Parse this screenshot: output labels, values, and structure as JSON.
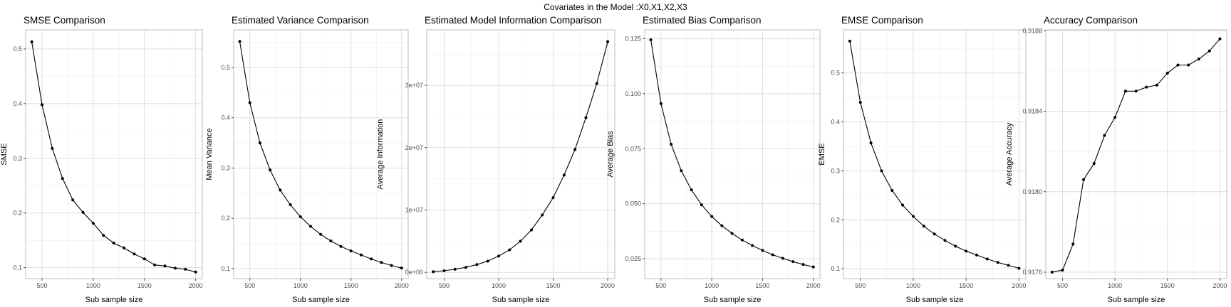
{
  "figure": {
    "suptitle": "Covariates in the Model :X0,X1,X2,X3"
  },
  "chart_data": [
    {
      "type": "line",
      "title": "SMSE Comparison",
      "xlabel": "Sub sample size",
      "ylabel": "SMSE",
      "x": [
        400,
        500,
        600,
        700,
        800,
        900,
        1000,
        1100,
        1200,
        1300,
        1400,
        1500,
        1600,
        1700,
        1800,
        1900,
        2000
      ],
      "values": [
        0.513,
        0.398,
        0.318,
        0.263,
        0.224,
        0.201,
        0.181,
        0.159,
        0.145,
        0.136,
        0.125,
        0.116,
        0.105,
        0.103,
        0.099,
        0.097,
        0.092
      ],
      "xlim": [
        340,
        2065
      ],
      "ylim": [
        0.08,
        0.535
      ],
      "xticks": [
        500,
        1000,
        1500,
        2000
      ],
      "xtick_labels": [
        "500",
        "1000",
        "1500",
        "2000"
      ],
      "yticks": [
        0.1,
        0.2,
        0.3,
        0.4,
        0.5
      ],
      "ytick_labels": [
        "0.1",
        "0.2",
        "0.3",
        "0.4",
        "0.5"
      ],
      "grid": true,
      "markers": true,
      "color": "#000000"
    },
    {
      "type": "line",
      "title": "Estimated Variance Comparison",
      "xlabel": "Sub sample size",
      "ylabel": "Mean Variance",
      "x": [
        400,
        500,
        600,
        700,
        800,
        900,
        1000,
        1100,
        1200,
        1300,
        1400,
        1500,
        1600,
        1700,
        1800,
        1900,
        2000
      ],
      "values": [
        0.552,
        0.43,
        0.35,
        0.296,
        0.256,
        0.227,
        0.203,
        0.184,
        0.168,
        0.155,
        0.144,
        0.135,
        0.127,
        0.119,
        0.112,
        0.106,
        0.101
      ],
      "xlim": [
        340,
        2065
      ],
      "ylim": [
        0.08,
        0.575
      ],
      "xticks": [
        500,
        1000,
        1500,
        2000
      ],
      "xtick_labels": [
        "500",
        "1000",
        "1500",
        "2000"
      ],
      "yticks": [
        0.1,
        0.2,
        0.3,
        0.4,
        0.5
      ],
      "ytick_labels": [
        "0.1",
        "0.2",
        "0.3",
        "0.4",
        "0.5"
      ],
      "grid": true,
      "markers": true,
      "color": "#000000"
    },
    {
      "type": "line",
      "title": "Estimated Model Information Comparison",
      "xlabel": "Sub sample size",
      "ylabel": "Average Information",
      "x": [
        400,
        500,
        600,
        700,
        800,
        900,
        1000,
        1100,
        1200,
        1300,
        1400,
        1500,
        1600,
        1700,
        1800,
        1900,
        2000
      ],
      "values": [
        100000,
        250000,
        500000,
        800000,
        1250000,
        1800000,
        2600000,
        3600000,
        5000000,
        6800000,
        9200000,
        12000000,
        15600000,
        19700000,
        24800000,
        30300000,
        37000000
      ],
      "xlim": [
        340,
        2065
      ],
      "ylim": [
        -1000000,
        38900000
      ],
      "xticks": [
        500,
        1000,
        1500,
        2000
      ],
      "xtick_labels": [
        "500",
        "1000",
        "1500",
        "2000"
      ],
      "yticks": [
        0,
        10000000,
        20000000,
        30000000
      ],
      "ytick_labels": [
        "0e+00",
        "1e+07",
        "2e+07",
        "3e+07"
      ],
      "grid": true,
      "markers": true,
      "color": "#000000"
    },
    {
      "type": "line",
      "title": "Estimated Bias Comparison",
      "xlabel": "Sub sample size",
      "ylabel": "Average Bias",
      "x": [
        400,
        500,
        600,
        700,
        800,
        900,
        1000,
        1100,
        1200,
        1300,
        1400,
        1500,
        1600,
        1700,
        1800,
        1900,
        2000
      ],
      "values": [
        0.1245,
        0.0955,
        0.077,
        0.065,
        0.0563,
        0.0495,
        0.0442,
        0.04,
        0.0365,
        0.0335,
        0.031,
        0.0288,
        0.0268,
        0.0252,
        0.0237,
        0.0224,
        0.0213
      ],
      "xlim": [
        340,
        2065
      ],
      "ylim": [
        0.016,
        0.129
      ],
      "xticks": [
        500,
        1000,
        1500,
        2000
      ],
      "xtick_labels": [
        "500",
        "1000",
        "1500",
        "2000"
      ],
      "yticks": [
        0.025,
        0.05,
        0.075,
        0.1,
        0.125
      ],
      "ytick_labels": [
        "0.025",
        "0.050",
        "0.075",
        "0.100",
        "0.125"
      ],
      "grid": true,
      "markers": true,
      "color": "#000000"
    },
    {
      "type": "line",
      "title": "EMSE Comparison",
      "xlabel": "Sub sample size",
      "ylabel": "EMSE",
      "x": [
        400,
        500,
        600,
        700,
        800,
        900,
        1000,
        1100,
        1200,
        1300,
        1400,
        1500,
        1600,
        1700,
        1800,
        1900,
        2000
      ],
      "values": [
        0.565,
        0.44,
        0.357,
        0.3,
        0.26,
        0.23,
        0.207,
        0.187,
        0.171,
        0.158,
        0.146,
        0.136,
        0.128,
        0.12,
        0.113,
        0.107,
        0.101
      ],
      "xlim": [
        340,
        2065
      ],
      "ylim": [
        0.08,
        0.588
      ],
      "xticks": [
        500,
        1000,
        1500,
        2000
      ],
      "xtick_labels": [
        "500",
        "1000",
        "1500",
        "2000"
      ],
      "yticks": [
        0.1,
        0.2,
        0.3,
        0.4,
        0.5
      ],
      "ytick_labels": [
        "0.1",
        "0.2",
        "0.3",
        "0.4",
        "0.5"
      ],
      "grid": true,
      "markers": true,
      "color": "#000000"
    },
    {
      "type": "line",
      "title": "Accuracy Comparison",
      "xlabel": "Sub sample size",
      "ylabel": "Average Accuracy",
      "x": [
        400,
        500,
        600,
        700,
        800,
        900,
        1000,
        1100,
        1200,
        1300,
        1400,
        1500,
        1600,
        1700,
        1800,
        1900,
        2000
      ],
      "values": [
        0.9176,
        0.91761,
        0.91774,
        0.91806,
        0.91814,
        0.91828,
        0.91837,
        0.9185,
        0.9185,
        0.91852,
        0.91853,
        0.91859,
        0.91863,
        0.91863,
        0.91866,
        0.9187,
        0.91876
      ],
      "xlim": [
        340,
        2065
      ],
      "ylim": [
        0.917568,
        0.918805
      ],
      "xticks": [
        500,
        1000,
        1500,
        2000
      ],
      "xtick_labels": [
        "500",
        "1000",
        "1500",
        "2000"
      ],
      "yticks": [
        0.9176,
        0.918,
        0.9184,
        0.9188
      ],
      "ytick_labels": [
        "0.9176",
        "0.9180",
        "0.9184",
        "0.9188"
      ],
      "grid": true,
      "markers": true,
      "color": "#000000"
    }
  ]
}
